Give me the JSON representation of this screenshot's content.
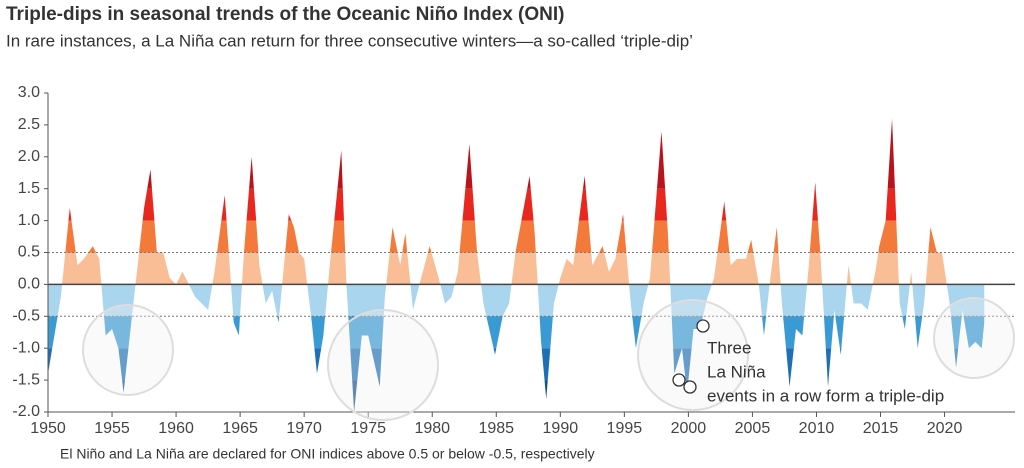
{
  "chart_data": {
    "type": "area",
    "title": "Triple-dips in seasonal trends of the Oceanic Niño Index (ONI)",
    "subtitle": "In rare instances, a La Niña can return for three consecutive winters—a so-called ‘triple-dip’",
    "footnote": "El Niño and La Niña are declared for ONI indices above 0.5 or below -0.5, respectively",
    "annotation": [
      "Three",
      "La Niña",
      "events in a row form a triple-dip"
    ],
    "x": [
      1950,
      1950.5,
      1951,
      1951.7,
      1952.3,
      1952.8,
      1953.5,
      1954,
      1954.5,
      1955,
      1955.5,
      1955.9,
      1956.5,
      1957,
      1957.5,
      1958,
      1958.5,
      1959,
      1959.5,
      1960,
      1960.5,
      1961,
      1961.5,
      1962,
      1962.5,
      1963,
      1963.8,
      1964.5,
      1964.9,
      1965.3,
      1965.9,
      1966.5,
      1967,
      1967.5,
      1968,
      1968.8,
      1969.2,
      1969.6,
      1970,
      1970.6,
      1971,
      1971.5,
      1972,
      1972.9,
      1973.3,
      1973.9,
      1974.5,
      1975,
      1975.9,
      1976.3,
      1976.9,
      1977.5,
      1977.9,
      1978.5,
      1979,
      1979.8,
      1980.5,
      1981,
      1981.5,
      1982,
      1982.9,
      1983.5,
      1984,
      1984.9,
      1985.5,
      1986,
      1986.5,
      1987.6,
      1988,
      1988.5,
      1988.9,
      1989.5,
      1990,
      1990.5,
      1991,
      1991.9,
      1992.5,
      1993.3,
      1993.8,
      1994.3,
      1994.9,
      1995.5,
      1995.9,
      1996.5,
      1997,
      1997.9,
      1998.4,
      1998.9,
      1999.5,
      1999.9,
      2000.4,
      2000.9,
      2001.5,
      2002,
      2002.8,
      2003.3,
      2003.8,
      2004.5,
      2004.9,
      2005.5,
      2005.9,
      2006.4,
      2006.9,
      2007.3,
      2007.9,
      2008.4,
      2008.9,
      2009.4,
      2009.9,
      2010.3,
      2010.9,
      2011.4,
      2011.9,
      2012.5,
      2012.9,
      2013.5,
      2014,
      2014.6,
      2014.9,
      2015.4,
      2015.9,
      2016.5,
      2016.9,
      2017.4,
      2017.9,
      2018.4,
      2018.9,
      2019.4,
      2019.8,
      2020.4,
      2020.9,
      2021.4,
      2021.9,
      2022.4,
      2022.9,
      2023.1
    ],
    "values": [
      -1.4,
      -0.8,
      -0.2,
      1.2,
      0.3,
      0.4,
      0.6,
      0.4,
      -0.8,
      -0.7,
      -1.0,
      -1.7,
      -0.6,
      0.3,
      1.2,
      1.8,
      0.5,
      0.5,
      0.1,
      0.0,
      0.2,
      0.0,
      -0.2,
      -0.3,
      -0.4,
      0.2,
      1.4,
      -0.6,
      -0.8,
      0.5,
      2.0,
      0.3,
      -0.3,
      -0.1,
      -0.6,
      1.1,
      0.9,
      0.5,
      0.4,
      -0.6,
      -1.4,
      -0.8,
      0.3,
      2.1,
      0.0,
      -2.0,
      -0.8,
      -0.8,
      -1.6,
      -0.2,
      0.9,
      0.3,
      0.8,
      -0.4,
      0.0,
      0.6,
      0.1,
      -0.3,
      -0.2,
      0.2,
      2.2,
      0.5,
      -0.3,
      -1.1,
      -0.5,
      -0.3,
      0.5,
      1.7,
      0.8,
      -0.9,
      -1.8,
      -0.3,
      0.1,
      0.4,
      0.3,
      1.7,
      0.3,
      0.6,
      0.2,
      0.4,
      1.1,
      -0.3,
      -1.0,
      -0.3,
      0.1,
      2.4,
      0.8,
      -1.4,
      -1.0,
      -1.7,
      -0.7,
      -0.7,
      -0.2,
      0.1,
      1.3,
      0.3,
      0.4,
      0.4,
      0.7,
      0.0,
      -0.8,
      0.1,
      0.9,
      -0.3,
      -1.6,
      -0.7,
      -0.8,
      0.3,
      1.6,
      0.5,
      -1.6,
      -0.4,
      -1.1,
      0.3,
      -0.3,
      -0.3,
      -0.4,
      0.2,
      0.6,
      1.0,
      2.6,
      -0.3,
      -0.7,
      0.2,
      -1.0,
      -0.3,
      0.9,
      0.5,
      0.5,
      -0.3,
      -1.3,
      -0.4,
      -1.0,
      -0.9,
      -1.0,
      -0.6
    ],
    "xlim": [
      1950,
      2025.5
    ],
    "xticks": [
      1950,
      1955,
      1960,
      1965,
      1970,
      1975,
      1980,
      1985,
      1990,
      1995,
      2000,
      2005,
      2010,
      2015,
      2020
    ],
    "ylim": [
      -2.0,
      3.0
    ],
    "yticks": [
      {
        "value": -2,
        "label": "-2.0"
      },
      {
        "value": -1.5,
        "label": "-1.5"
      },
      {
        "value": -1,
        "label": "-1.0"
      },
      {
        "value": -0.5,
        "label": "-0.5"
      },
      {
        "value": 0,
        "label": "0.0"
      },
      {
        "value": 0.5,
        "label": "0.5"
      },
      {
        "value": 1,
        "label": "1.0"
      },
      {
        "value": 1.5,
        "label": "1.5"
      },
      {
        "value": 2,
        "label": "2.0"
      },
      {
        "value": 2.5,
        "label": "2.5"
      },
      {
        "value": 3,
        "label": "3.0"
      }
    ],
    "reference_lines": [
      0.5,
      -0.5
    ],
    "color_thresholds": [
      0,
      0.5,
      1.0,
      1.5
    ],
    "positive_colors": [
      "#f9be96",
      "#f47a3c",
      "#e8281f",
      "#b8141c"
    ],
    "negative_colors": [
      "#a9d5ee",
      "#3a9ad4",
      "#1d70b6",
      "#16508c"
    ]
  }
}
